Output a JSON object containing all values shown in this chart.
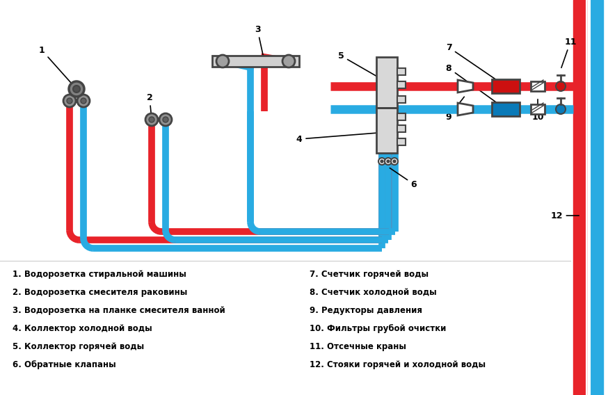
{
  "background_color": "#ffffff",
  "hot_color": "#e8232a",
  "cold_color": "#29abe2",
  "pipe_lw": 8,
  "pipe_lw_main": 18,
  "text_color": "#000000",
  "legend_items_left": [
    "1. Водорозетка стиральной машины",
    "2. Водорозетка смесителя раковины",
    "3. Водорозетка на планке смесителя ванной",
    "4. Коллектор холодной воды",
    "5. Коллектор горячей воды",
    "6. Обратные клапаны"
  ],
  "legend_items_right": [
    "7. Счетчик горячей воды",
    "8. Счетчик холодной воды",
    "9. Редукторы давления",
    "10. Фильтры грубой очистки",
    "11. Отсечные краны",
    "12. Стояки горячей и холодной воды"
  ]
}
